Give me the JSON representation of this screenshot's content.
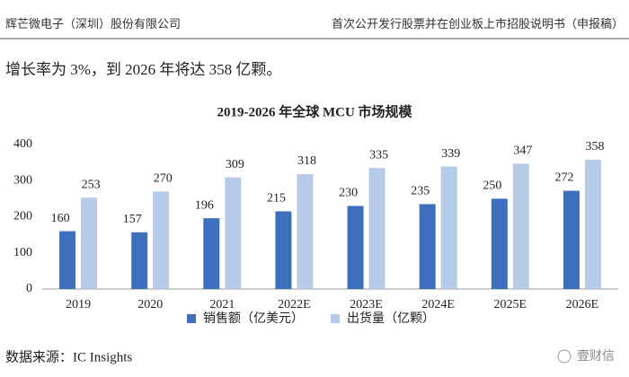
{
  "header": {
    "left": "辉芒微电子（深圳）股份有限公司",
    "right": "首次公开发行股票并在创业板上市招股说明书（申报稿）"
  },
  "body_text": "增长率为 3%，到 2026 年将达 358 亿颗。",
  "source": "数据来源：IC Insights",
  "watermark": "壹财信",
  "chart_data": {
    "type": "bar",
    "title": "2019-2026 年全球 MCU 市场规模",
    "categories": [
      "2019",
      "2020",
      "2021",
      "2022E",
      "2023E",
      "2024E",
      "2025E",
      "2026E"
    ],
    "series": [
      {
        "name": "销售额（亿美元）",
        "color": "#3d6fbd",
        "values": [
          160,
          157,
          196,
          215,
          230,
          235,
          250,
          272
        ]
      },
      {
        "name": "出货量（亿颗）",
        "color": "#b6cbe8",
        "values": [
          253,
          270,
          309,
          318,
          335,
          339,
          347,
          358
        ]
      }
    ],
    "ylim": [
      0,
      400
    ],
    "yticks": [
      0,
      100,
      200,
      300,
      400
    ],
    "grid": false,
    "legend": "bottom"
  }
}
